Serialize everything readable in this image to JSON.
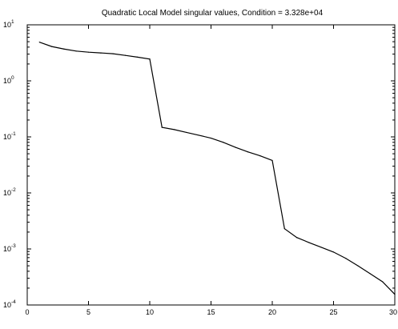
{
  "chart_data": {
    "type": "line",
    "title": "Quadratic Local Model singular values, Condition = 3.328e+04",
    "xlabel": "",
    "ylabel": "",
    "x_scale": "linear",
    "y_scale": "log",
    "xlim": [
      0,
      30
    ],
    "ylim": [
      0.0001,
      10
    ],
    "grid": false,
    "x_ticks": [
      {
        "value": 0,
        "label": "0"
      },
      {
        "value": 5,
        "label": "5"
      },
      {
        "value": 10,
        "label": "10"
      },
      {
        "value": 15,
        "label": "15"
      },
      {
        "value": 20,
        "label": "20"
      },
      {
        "value": 25,
        "label": "25"
      },
      {
        "value": 30,
        "label": "30"
      }
    ],
    "y_ticks": [
      {
        "value": 10,
        "base": "10",
        "exp": "1"
      },
      {
        "value": 1,
        "base": "10",
        "exp": "0"
      },
      {
        "value": 0.1,
        "base": "10",
        "exp": "-1"
      },
      {
        "value": 0.01,
        "base": "10",
        "exp": "-2"
      },
      {
        "value": 0.001,
        "base": "10",
        "exp": "-3"
      },
      {
        "value": 0.0001,
        "base": "10",
        "exp": "-4"
      }
    ],
    "series": [
      {
        "color": "#000000",
        "x": [
          1,
          2,
          3,
          4,
          5,
          6,
          7,
          8,
          9,
          10,
          11,
          12,
          13,
          14,
          15,
          16,
          17,
          18,
          19,
          20,
          21,
          22,
          23,
          24,
          25,
          26,
          27,
          28,
          29,
          30
        ],
        "values": [
          4.9,
          4.1,
          3.7,
          3.4,
          3.25,
          3.15,
          3.05,
          2.85,
          2.65,
          2.45,
          0.148,
          0.135,
          0.12,
          0.107,
          0.095,
          0.08,
          0.065,
          0.054,
          0.046,
          0.038,
          0.0023,
          0.0016,
          0.0013,
          0.00107,
          0.00088,
          0.00068,
          0.0005,
          0.00036,
          0.00026,
          0.000155
        ]
      }
    ]
  }
}
